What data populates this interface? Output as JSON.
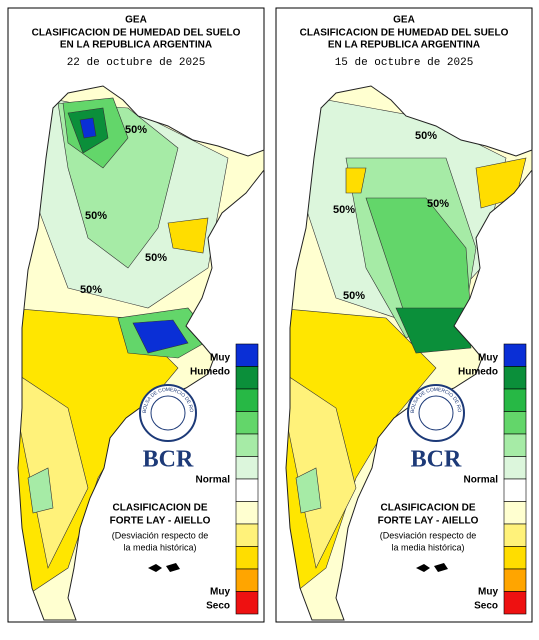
{
  "maps": [
    {
      "header": {
        "org": "GEA",
        "title_lines": [
          "CLASIFICACION DE HUMEDAD DEL SUELO",
          "EN LA REPUBLICA ARGENTINA"
        ],
        "date": "22 de octubre de 2025"
      },
      "contour_labels": [
        "50%",
        "50%",
        "50%",
        "50%"
      ],
      "legend": {
        "top": [
          "Muy",
          "Humedo"
        ],
        "middle": "Normal",
        "bottom": [
          "Muy",
          "Seco"
        ],
        "colors": [
          "#0a2fd6",
          "#0b8f3a",
          "#27b845",
          "#63d66a",
          "#a6eba6",
          "#dcf6dc",
          "#ffffff",
          "#ffffd0",
          "#fff27a",
          "#ffdd00",
          "#ffa500",
          "#ee1111"
        ]
      },
      "seal": "BOLSA DE COMERCIO DE ROSARIO",
      "logo": "BCR",
      "method": [
        "CLASIFICACION DE",
        "FORTE LAY - AIELLO"
      ],
      "note": [
        "(Desviación respecto de",
        "la media histórica)"
      ]
    },
    {
      "header": {
        "org": "GEA",
        "title_lines": [
          "CLASIFICACION DE HUMEDAD DEL SUELO",
          "EN LA REPUBLICA ARGENTINA"
        ],
        "date": "15 de octubre de 2025"
      },
      "contour_labels": [
        "50%",
        "50%",
        "50%",
        "50%"
      ],
      "legend": {
        "top": [
          "Muy",
          "Humedo"
        ],
        "middle": "Normal",
        "bottom": [
          "Muy",
          "Seco"
        ],
        "colors": [
          "#0a2fd6",
          "#0b8f3a",
          "#27b845",
          "#63d66a",
          "#a6eba6",
          "#dcf6dc",
          "#ffffff",
          "#ffffd0",
          "#fff27a",
          "#ffdd00",
          "#ffa500",
          "#ee1111"
        ]
      },
      "seal": "BOLSA DE COMERCIO DE ROSARIO",
      "logo": "BCR",
      "method": [
        "CLASIFICACION DE",
        "FORTE LAY - AIELLO"
      ],
      "note": [
        "(Desviación respecto de",
        "la media histórica)"
      ]
    }
  ]
}
